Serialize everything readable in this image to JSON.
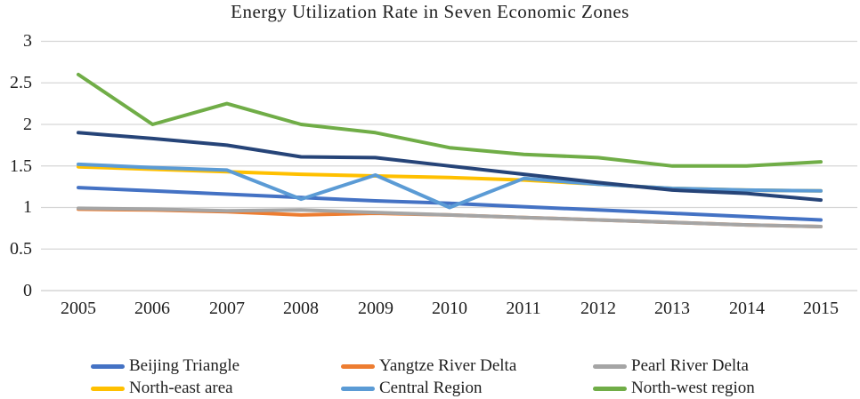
{
  "page": {
    "background": "#ffffff"
  },
  "chart_data": {
    "type": "line",
    "title": "Energy Utilization Rate in Seven Economic Zones",
    "xlabel": "",
    "ylabel": "",
    "categories": [
      "2005",
      "2006",
      "2007",
      "2008",
      "2009",
      "2010",
      "2011",
      "2012",
      "2013",
      "2014",
      "2015"
    ],
    "yticks": [
      "3",
      "2.5",
      "2",
      "1.5",
      "1",
      "0.5",
      "0"
    ],
    "ylim": [
      0,
      3
    ],
    "grid": "horizontal-only",
    "gridline_color": "#d6d6d6",
    "legend_position": "bottom",
    "series": [
      {
        "name": "Beijing Triangle",
        "color": "#4472C4",
        "in_legend": true,
        "values": [
          1.24,
          1.2,
          1.16,
          1.12,
          1.08,
          1.05,
          1.01,
          0.97,
          0.93,
          0.89,
          0.85
        ]
      },
      {
        "name": "Yangtze River Delta",
        "color": "#ED7D31",
        "in_legend": true,
        "values": [
          0.98,
          0.97,
          0.95,
          0.91,
          0.93,
          0.91,
          0.88,
          0.85,
          0.82,
          0.79,
          0.77
        ]
      },
      {
        "name": "Pearl River Delta",
        "color": "#A5A5A5",
        "in_legend": true,
        "values": [
          0.99,
          0.98,
          0.96,
          0.97,
          0.94,
          0.91,
          0.88,
          0.85,
          0.82,
          0.79,
          0.77
        ]
      },
      {
        "name": "North-east area",
        "color": "#FFC000",
        "in_legend": true,
        "values": [
          1.49,
          1.46,
          1.43,
          1.4,
          1.38,
          1.36,
          1.33,
          1.28,
          1.23,
          1.21,
          1.2
        ]
      },
      {
        "name": "Central Region",
        "color": "#5B9BD5",
        "in_legend": true,
        "values": [
          1.52,
          1.48,
          1.45,
          1.1,
          1.39,
          1.0,
          1.35,
          1.28,
          1.23,
          1.21,
          1.2
        ]
      },
      {
        "name": "North-west region",
        "color": "#70AD47",
        "in_legend": true,
        "values": [
          2.6,
          2.0,
          2.25,
          2.0,
          1.9,
          1.72,
          1.64,
          1.6,
          1.5,
          1.5,
          1.55
        ]
      },
      {
        "name": "",
        "color": "#264478",
        "in_legend": false,
        "values": [
          1.9,
          1.83,
          1.75,
          1.61,
          1.6,
          1.5,
          1.4,
          1.3,
          1.21,
          1.17,
          1.09
        ]
      }
    ]
  }
}
